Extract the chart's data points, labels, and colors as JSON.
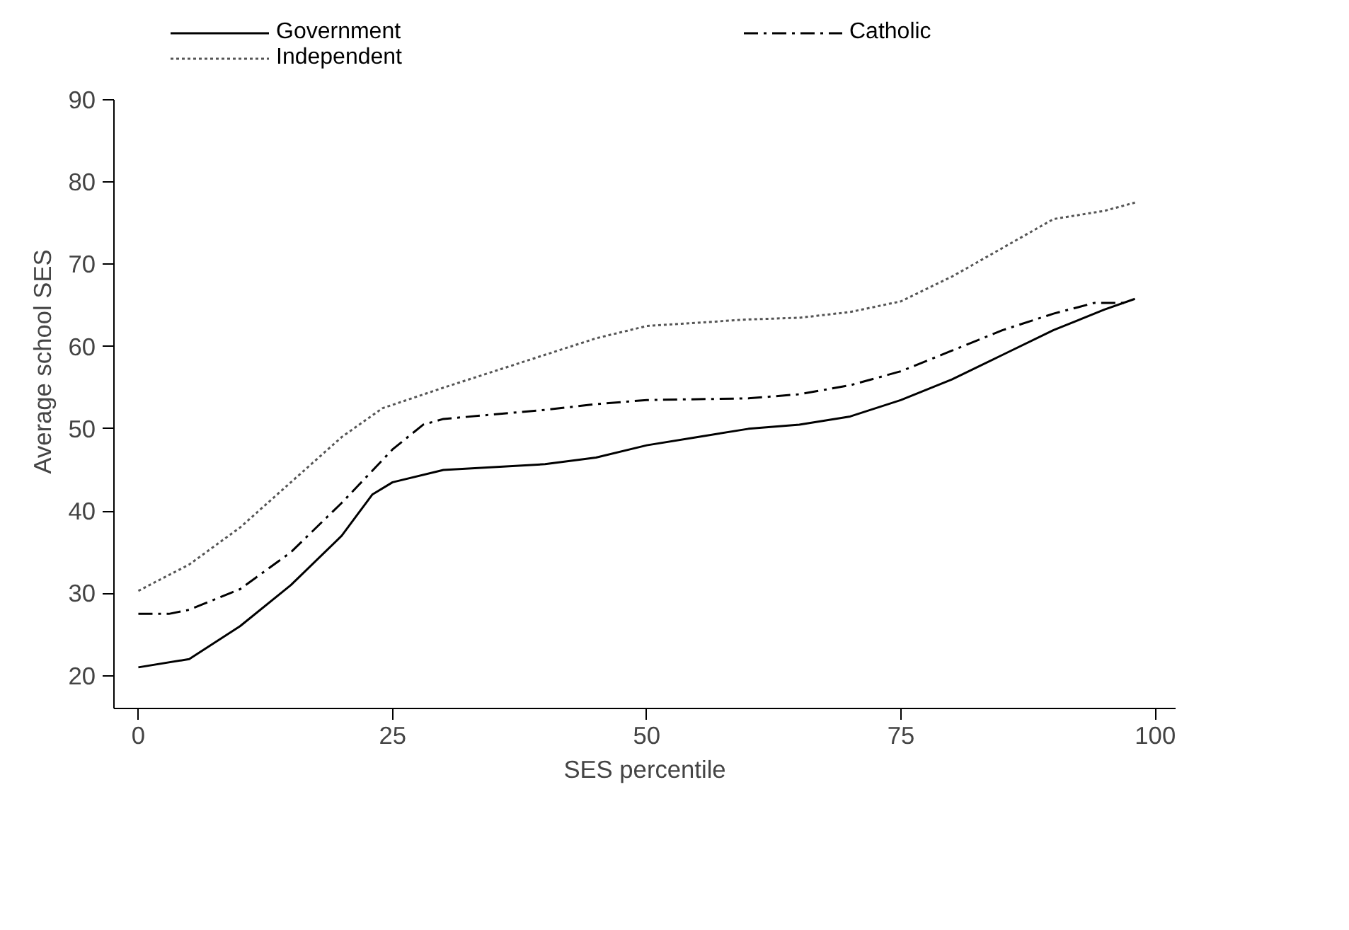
{
  "chart_data": {
    "type": "line",
    "xlabel": "SES percentile",
    "ylabel": "Average school SES",
    "xlim": [
      -2.4,
      102
    ],
    "ylim": [
      16,
      90
    ],
    "xticks": [
      0,
      25,
      50,
      75,
      100
    ],
    "yticks": [
      20,
      30,
      40,
      50,
      60,
      70,
      80,
      90
    ],
    "grid": false,
    "legend": "top",
    "marker": "none",
    "series": [
      {
        "name": "Government",
        "color": "#000000",
        "line_style": "solid",
        "x": [
          0,
          5,
          10,
          15,
          20,
          23,
          25,
          30,
          40,
          45,
          50,
          55,
          60,
          65,
          70,
          75,
          80,
          85,
          90,
          95,
          98
        ],
        "values": [
          21,
          22,
          26,
          31,
          37,
          42,
          43.5,
          45,
          45.7,
          46.5,
          48,
          49,
          50,
          50.5,
          51.5,
          53.5,
          56,
          59,
          62,
          64.5,
          65.8
        ]
      },
      {
        "name": "Catholic",
        "color": "#000000",
        "line_style": "dashdot",
        "x": [
          0,
          3,
          5,
          10,
          15,
          20,
          25,
          28,
          30,
          40,
          45,
          50,
          60,
          65,
          70,
          75,
          80,
          85,
          90,
          94,
          97
        ],
        "values": [
          27.5,
          27.5,
          28,
          30.5,
          35,
          41,
          47.5,
          50.5,
          51.2,
          52.3,
          53,
          53.5,
          53.7,
          54.2,
          55.3,
          57,
          59.5,
          62,
          64,
          65.3,
          65.3
        ]
      },
      {
        "name": "Independent",
        "color": "#555555",
        "line_style": "dotted",
        "x": [
          0,
          5,
          10,
          15,
          20,
          24,
          30,
          40,
          45,
          50,
          60,
          65,
          70,
          75,
          80,
          85,
          90,
          95,
          98
        ],
        "values": [
          30.3,
          33.5,
          38,
          43.5,
          49,
          52.5,
          55,
          59,
          61,
          62.5,
          63.3,
          63.5,
          64.2,
          65.5,
          68.5,
          72,
          75.5,
          76.5,
          77.5
        ]
      }
    ]
  }
}
